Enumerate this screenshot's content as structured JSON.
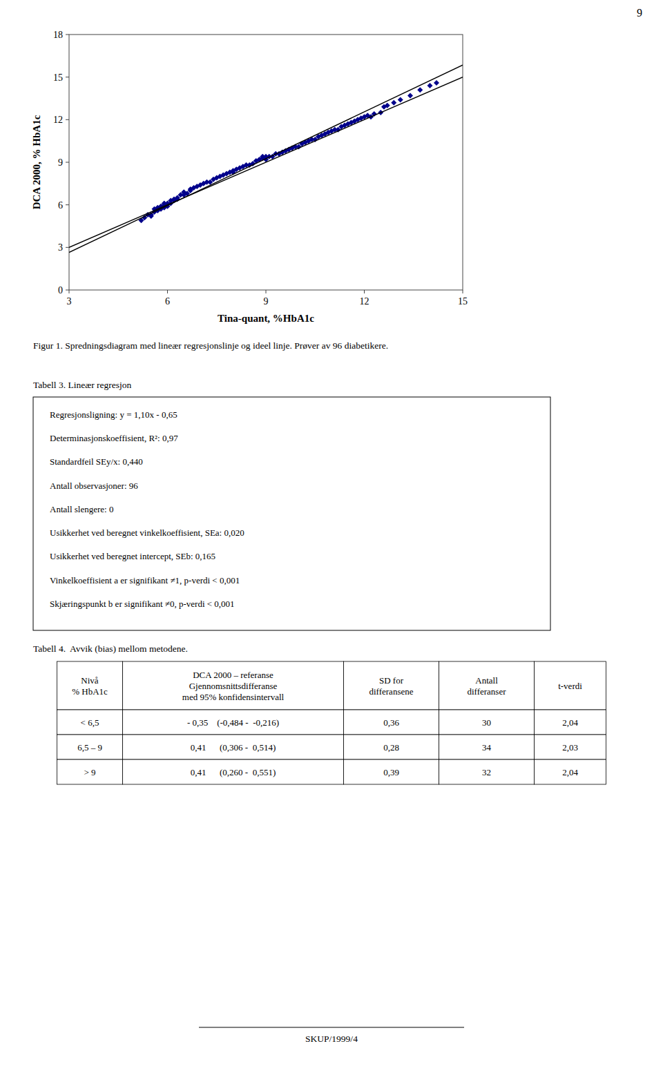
{
  "chart_data": {
    "type": "scatter",
    "xlabel": "Tina-quant, %HbA1c",
    "ylabel": "DCA 2000, % HbA1c",
    "xlim": [
      3,
      15
    ],
    "ylim": [
      0,
      18
    ],
    "xticks": [
      3,
      6,
      9,
      12,
      15
    ],
    "yticks": [
      0,
      3,
      6,
      9,
      12,
      15,
      18
    ],
    "grid": false,
    "series": [
      {
        "type": "scatter",
        "color": "#00008B",
        "marker": "diamond",
        "x": [
          5.2,
          5.3,
          5.5,
          5.5,
          5.6,
          5.6,
          5.7,
          5.7,
          5.8,
          5.8,
          5.9,
          5.9,
          5.9,
          6.0,
          6.0,
          6.1,
          6.1,
          6.2,
          6.2,
          6.3,
          6.4,
          6.5,
          6.5,
          6.6,
          6.7,
          6.8,
          6.9,
          7.0,
          7.2,
          7.3,
          7.5,
          7.6,
          7.7,
          7.8,
          8.0,
          8.1,
          8.2,
          8.3,
          8.4,
          8.5,
          8.6,
          8.7,
          8.8,
          8.9,
          9.0,
          9.0,
          9.1,
          9.2,
          9.3,
          9.4,
          9.5,
          9.6,
          9.7,
          9.8,
          9.9,
          10.0,
          10.1,
          10.2,
          10.3,
          10.4,
          10.5,
          10.6,
          10.7,
          10.8,
          10.9,
          11.0,
          11.1,
          11.2,
          11.3,
          11.4,
          11.5,
          11.6,
          11.7,
          11.8,
          11.9,
          12.0,
          12.1,
          12.2,
          12.3,
          12.5,
          12.6,
          12.7,
          12.9,
          13.1,
          13.4,
          13.7,
          14.0,
          14.2,
          5.4,
          6.3,
          6.7,
          7.1,
          7.4,
          7.9,
          8.0,
          8.9
        ],
        "values": [
          4.9,
          5.1,
          5.3,
          5.2,
          5.5,
          5.7,
          5.6,
          5.8,
          5.7,
          5.9,
          5.8,
          6.0,
          6.1,
          6.1,
          5.9,
          6.3,
          6.1,
          6.3,
          6.4,
          6.4,
          6.7,
          6.7,
          6.9,
          6.8,
          7.0,
          7.2,
          7.3,
          7.4,
          7.6,
          7.6,
          7.9,
          8.0,
          8.1,
          8.2,
          8.3,
          8.5,
          8.6,
          8.7,
          8.8,
          8.8,
          8.9,
          9.1,
          9.2,
          9.3,
          9.2,
          9.4,
          9.4,
          9.4,
          9.6,
          9.6,
          9.7,
          9.8,
          9.9,
          10.0,
          10.1,
          10.1,
          10.3,
          10.4,
          10.5,
          10.6,
          10.6,
          10.8,
          10.9,
          11.0,
          11.1,
          11.2,
          11.3,
          11.3,
          11.5,
          11.6,
          11.7,
          11.8,
          11.9,
          12.0,
          12.1,
          12.2,
          12.3,
          12.2,
          12.4,
          12.5,
          12.9,
          13.0,
          13.2,
          13.4,
          13.7,
          14.1,
          14.4,
          14.6,
          5.3,
          6.5,
          7.1,
          7.5,
          7.8,
          8.3,
          8.4,
          9.4
        ]
      },
      {
        "type": "line",
        "color": "#000000",
        "line_style": "solid",
        "x": [
          3,
          15
        ],
        "values": [
          2.65,
          15.85
        ]
      },
      {
        "type": "line",
        "color": "#000000",
        "line_style": "solid",
        "x": [
          3,
          15
        ],
        "values": [
          3,
          15
        ]
      }
    ]
  },
  "page_number": "9",
  "figure_caption": "Figur 1. Spredningsdiagram med lineær regresjonslinje og ideel linje. Prøver av 96 diabetikere.",
  "tables": [
    {
      "title": "Tabell 3. Lineær regresjon",
      "lines": [
        "Regresjonsligning: y = 1,10x - 0,65",
        "Determinasjonskoeffisient, R²: 0,97",
        "Standardfeil SEy/x: 0,440",
        "Antall observasjoner: 96",
        "Antall slengere: 0",
        "Usikkerhet ved beregnet vinkelkoeffisient, SEa: 0,020",
        "Usikkerhet ved beregnet intercept, SEb: 0,165",
        "Vinkelkoeffisient a er signifikant ≠1, p-verdi < 0,001",
        "Skjæringspunkt b er signifikant ≠0, p-verdi < 0,001"
      ]
    },
    {
      "title": "Tabell 4.  Avvik (bias) mellom metodene.",
      "headers": [
        "Nivå\n% HbA1c",
        "DCA 2000 – referanse\nGjennomsnittsdifferanse\nmed 95% konfidensintervall",
        "SD for\ndifferansene",
        "Antall\ndifferanser",
        "t-verdi"
      ],
      "rows": [
        [
          "< 6,5",
          "- 0,35    (-0,484 -  -0,216)",
          "0,36",
          "30",
          "2,04"
        ],
        [
          "6,5 – 9",
          "0,41      (0,306 -  0,514)",
          "0,28",
          "34",
          "2,03"
        ],
        [
          "> 9",
          "0,41      (0,260 -  0,551)",
          "0,39",
          "32",
          "2,04"
        ]
      ]
    }
  ],
  "footer_text": "SKUP/1999/4"
}
